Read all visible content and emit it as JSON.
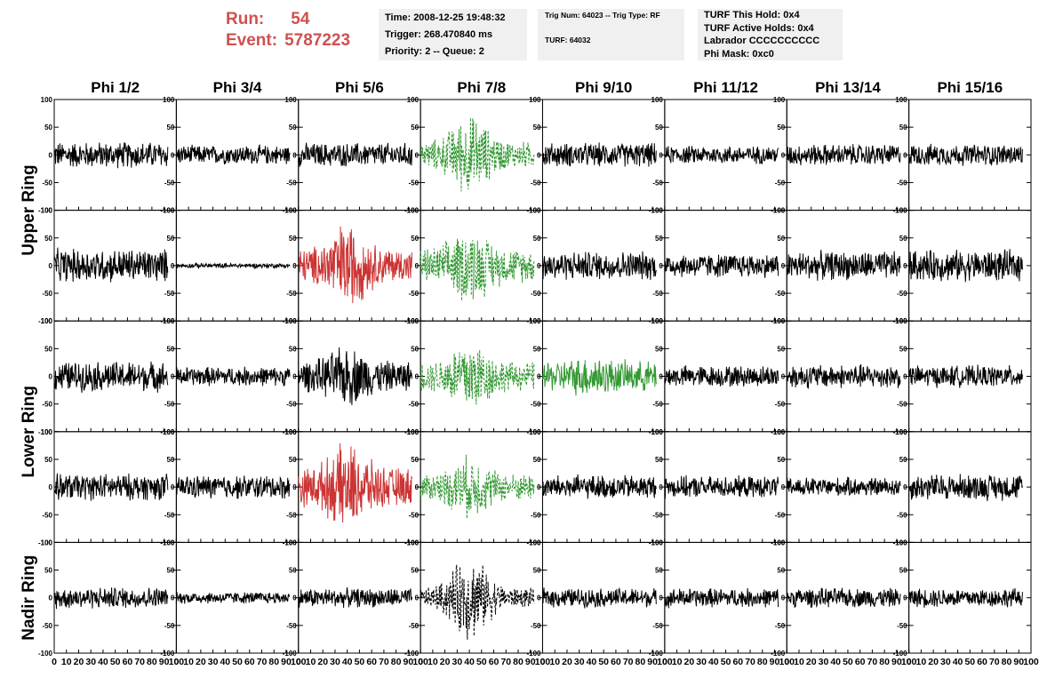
{
  "header": {
    "run_label": "Run:",
    "run_value": "54",
    "event_label": "Event:",
    "event_value": "5787223"
  },
  "info_panel_1": {
    "time": "Time: 2008-12-25 19:48:32",
    "trigger": "Trigger: 268.470840 ms",
    "priority": "Priority: 2 -- Queue: 2"
  },
  "info_panel_2": {
    "trig": "Trig Num: 64023 -- Trig Type: RF",
    "turf": "TURF: 64032"
  },
  "info_panel_3": {
    "this_hold": "TURF This Hold: 0x4",
    "active_holds": "TURF Active Holds: 0x4",
    "labrador": "Labrador CCCCCCCCCC",
    "phi_mask": "Phi Mask: 0xc0"
  },
  "colors": {
    "header_red": "#d0504f",
    "normal": "#000000",
    "triggered_red": "#cc3333",
    "triggered_green": "#339933"
  },
  "chart_data": {
    "type": "line",
    "columns": [
      "Phi 1/2",
      "Phi 3/4",
      "Phi 5/6",
      "Phi 7/8",
      "Phi 9/10",
      "Phi 11/12",
      "Phi 13/14",
      "Phi 15/16"
    ],
    "ring_labels": [
      {
        "label": "Upper Ring",
        "rows": [
          0,
          1
        ]
      },
      {
        "label": "Lower Ring",
        "rows": [
          2,
          3
        ]
      },
      {
        "label": "Nadir Ring",
        "rows": [
          4
        ]
      }
    ],
    "x_range": [
      0,
      100
    ],
    "y_range": [
      -100,
      100
    ],
    "y_ticks": [
      -100,
      -50,
      0,
      50,
      100
    ],
    "x_ticks": [
      0,
      10,
      20,
      30,
      40,
      50,
      60,
      70,
      80,
      90,
      100
    ],
    "x_tick_labels": [
      "0",
      "10",
      "20",
      "30",
      "40",
      "50",
      "60",
      "70",
      "80",
      "90",
      "100"
    ],
    "waveform_samples_per_trace": 260,
    "waveform_x_end": 93,
    "traces": [
      [
        {
          "amp": 22,
          "style": "solid",
          "color": "black",
          "burst": 0
        },
        {
          "amp": 16,
          "style": "solid",
          "color": "black",
          "burst": 0
        },
        {
          "amp": 20,
          "style": "solid",
          "color": "black",
          "burst": 0
        },
        {
          "amp": 22,
          "style": "dashed",
          "color": "green",
          "burst": 45
        },
        {
          "amp": 20,
          "style": "solid",
          "color": "black",
          "burst": 0
        },
        {
          "amp": 15,
          "style": "solid",
          "color": "black",
          "burst": 0
        },
        {
          "amp": 18,
          "style": "solid",
          "color": "black",
          "burst": 0
        },
        {
          "amp": 18,
          "style": "solid",
          "color": "black",
          "burst": 0
        }
      ],
      [
        {
          "amp": 28,
          "style": "solid",
          "color": "black",
          "burst": 0
        },
        {
          "amp": 4,
          "style": "solid",
          "color": "black",
          "burst": 0
        },
        {
          "amp": 28,
          "style": "solid",
          "color": "red",
          "burst": 45
        },
        {
          "amp": 28,
          "style": "dashed",
          "color": "green",
          "burst": 35
        },
        {
          "amp": 24,
          "style": "solid",
          "color": "black",
          "burst": 0
        },
        {
          "amp": 20,
          "style": "solid",
          "color": "black",
          "burst": 0
        },
        {
          "amp": 24,
          "style": "solid",
          "color": "black",
          "burst": 0
        },
        {
          "amp": 26,
          "style": "solid",
          "color": "black",
          "burst": 0
        }
      ],
      [
        {
          "amp": 25,
          "style": "solid",
          "color": "black",
          "burst": 0
        },
        {
          "amp": 16,
          "style": "solid",
          "color": "black",
          "burst": 0
        },
        {
          "amp": 25,
          "style": "solid",
          "color": "black",
          "burst": 25
        },
        {
          "amp": 24,
          "style": "dashed",
          "color": "green",
          "burst": 40
        },
        {
          "amp": 25,
          "style": "solid",
          "color": "green",
          "burst": 10
        },
        {
          "amp": 18,
          "style": "solid",
          "color": "black",
          "burst": 0
        },
        {
          "amp": 20,
          "style": "solid",
          "color": "black",
          "burst": 0
        },
        {
          "amp": 18,
          "style": "solid",
          "color": "black",
          "burst": 0
        }
      ],
      [
        {
          "amp": 22,
          "style": "solid",
          "color": "black",
          "burst": 0
        },
        {
          "amp": 20,
          "style": "solid",
          "color": "black",
          "burst": 0
        },
        {
          "amp": 32,
          "style": "solid",
          "color": "red",
          "burst": 40
        },
        {
          "amp": 22,
          "style": "dashed",
          "color": "green",
          "burst": 30
        },
        {
          "amp": 20,
          "style": "solid",
          "color": "black",
          "burst": 0
        },
        {
          "amp": 18,
          "style": "solid",
          "color": "black",
          "burst": 0
        },
        {
          "amp": 16,
          "style": "solid",
          "color": "black",
          "burst": 0
        },
        {
          "amp": 22,
          "style": "solid",
          "color": "black",
          "burst": 0
        }
      ],
      [
        {
          "amp": 18,
          "style": "solid",
          "color": "black",
          "burst": 0
        },
        {
          "amp": 10,
          "style": "solid",
          "color": "black",
          "burst": 0
        },
        {
          "amp": 16,
          "style": "solid",
          "color": "black",
          "burst": 0
        },
        {
          "amp": 16,
          "style": "dashed",
          "color": "black",
          "burst": 55
        },
        {
          "amp": 16,
          "style": "solid",
          "color": "black",
          "burst": 0
        },
        {
          "amp": 16,
          "style": "solid",
          "color": "black",
          "burst": 0
        },
        {
          "amp": 16,
          "style": "solid",
          "color": "black",
          "burst": 0
        },
        {
          "amp": 16,
          "style": "solid",
          "color": "black",
          "burst": 0
        }
      ]
    ]
  }
}
